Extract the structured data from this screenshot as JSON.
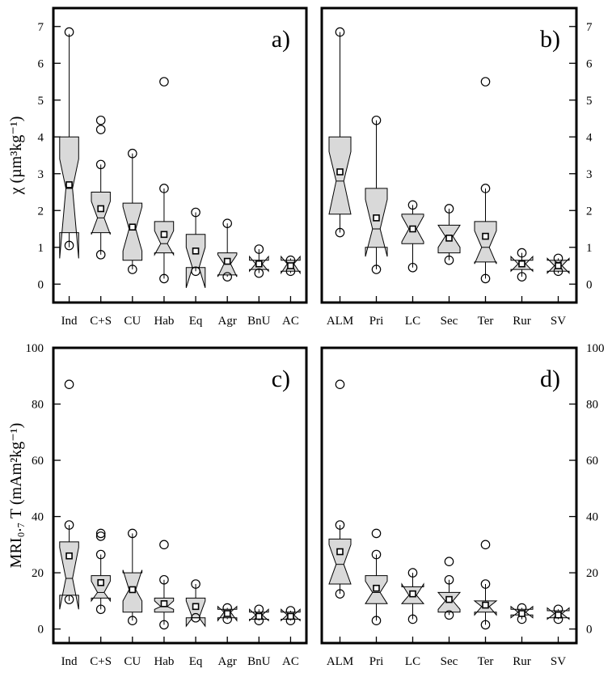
{
  "chart_data": [
    {
      "type": "boxplot",
      "panel_label": "a)",
      "ylabel": "χ (µm³kg⁻¹)",
      "ylim": [
        -0.5,
        7.5
      ],
      "yticks": [
        0,
        1,
        2,
        3,
        4,
        5,
        6,
        7
      ],
      "ytick_labels": [
        "0",
        "1",
        "2",
        "3",
        "4",
        "5",
        "6",
        "7"
      ],
      "y_axis_side": "left",
      "categories": [
        "Ind",
        "C+S",
        "CU",
        "Hab",
        "Eq",
        "Agr",
        "BnU",
        "AC"
      ],
      "boxes": [
        {
          "q1": 1.4,
          "median": 2.6,
          "q3": 4.0,
          "notch_low": 0.7,
          "notch_high": 3.4,
          "whisker_low": 1.0,
          "whisker_high": 6.8,
          "mean": 2.7,
          "outliers": [
            6.85,
            1.05
          ]
        },
        {
          "q1": 1.4,
          "median": 1.8,
          "q3": 2.5,
          "notch_low": 1.35,
          "notch_high": 2.25,
          "whisker_low": 0.8,
          "whisker_high": 3.25,
          "mean": 2.05,
          "outliers": [
            4.45,
            4.2,
            3.25,
            0.8
          ]
        },
        {
          "q1": 0.65,
          "median": 1.5,
          "q3": 2.2,
          "notch_low": 0.9,
          "notch_high": 2.1,
          "whisker_low": 0.4,
          "whisker_high": 3.55,
          "mean": 1.55,
          "outliers": [
            3.55,
            0.4
          ]
        },
        {
          "q1": 0.85,
          "median": 1.1,
          "q3": 1.7,
          "notch_low": 0.8,
          "notch_high": 1.45,
          "whisker_low": 0.15,
          "whisker_high": 2.6,
          "mean": 1.35,
          "outliers": [
            5.5,
            2.6,
            0.15
          ]
        },
        {
          "q1": 0.45,
          "median": 0.45,
          "q3": 1.35,
          "notch_low": -0.1,
          "notch_high": 1.0,
          "whisker_low": 0.35,
          "whisker_high": 1.95,
          "mean": 0.9,
          "outliers": [
            1.95,
            0.35
          ]
        },
        {
          "q1": 0.25,
          "median": 0.55,
          "q3": 0.85,
          "notch_low": 0.2,
          "notch_high": 0.8,
          "whisker_low": 0.2,
          "whisker_high": 1.65,
          "mean": 0.62,
          "outliers": [
            1.65,
            0.2
          ]
        },
        {
          "q1": 0.4,
          "median": 0.55,
          "q3": 0.65,
          "notch_low": 0.35,
          "notch_high": 0.75,
          "whisker_low": 0.3,
          "whisker_high": 0.95,
          "mean": 0.55,
          "outliers": [
            0.95,
            0.3
          ]
        },
        {
          "q1": 0.35,
          "median": 0.55,
          "q3": 0.65,
          "notch_low": 0.3,
          "notch_high": 0.75,
          "whisker_low": 0.3,
          "whisker_high": 0.7,
          "mean": 0.5,
          "outliers": [
            0.65,
            0.35
          ]
        }
      ]
    },
    {
      "type": "boxplot",
      "panel_label": "b)",
      "ylabel": "",
      "ylim": [
        -0.5,
        7.5
      ],
      "yticks": [
        0,
        1,
        2,
        3,
        4,
        5,
        6,
        7
      ],
      "ytick_labels": [
        "0",
        "1",
        "2",
        "3",
        "4",
        "5",
        "6",
        "7"
      ],
      "y_axis_side": "right",
      "categories": [
        "ALM",
        "Pri",
        "LC",
        "Sec",
        "Ter",
        "Rur",
        "SV"
      ],
      "boxes": [
        {
          "q1": 1.9,
          "median": 2.8,
          "q3": 4.0,
          "notch_low": 1.9,
          "notch_high": 3.6,
          "whisker_low": 1.4,
          "whisker_high": 6.85,
          "mean": 3.05,
          "outliers": [
            6.85,
            1.4
          ]
        },
        {
          "q1": 1.0,
          "median": 1.5,
          "q3": 2.6,
          "notch_low": 0.75,
          "notch_high": 2.3,
          "whisker_low": 0.4,
          "whisker_high": 4.45,
          "mean": 1.8,
          "outliers": [
            4.45,
            0.4
          ]
        },
        {
          "q1": 1.1,
          "median": 1.5,
          "q3": 1.9,
          "notch_low": 1.15,
          "notch_high": 1.85,
          "whisker_low": 0.45,
          "whisker_high": 2.15,
          "mean": 1.5,
          "outliers": [
            2.15,
            0.45
          ]
        },
        {
          "q1": 0.85,
          "median": 1.3,
          "q3": 1.6,
          "notch_low": 1.0,
          "notch_high": 1.6,
          "whisker_low": 0.65,
          "whisker_high": 2.05,
          "mean": 1.25,
          "outliers": [
            2.05,
            0.65
          ]
        },
        {
          "q1": 0.6,
          "median": 1.0,
          "q3": 1.7,
          "notch_low": 0.55,
          "notch_high": 1.45,
          "whisker_low": 0.15,
          "whisker_high": 2.6,
          "mean": 1.3,
          "outliers": [
            5.5,
            2.6,
            0.15
          ]
        },
        {
          "q1": 0.4,
          "median": 0.55,
          "q3": 0.65,
          "notch_low": 0.35,
          "notch_high": 0.75,
          "whisker_low": 0.2,
          "whisker_high": 0.85,
          "mean": 0.55,
          "outliers": [
            0.85,
            0.2
          ]
        },
        {
          "q1": 0.35,
          "median": 0.5,
          "q3": 0.65,
          "notch_low": 0.3,
          "notch_high": 0.7,
          "whisker_low": 0.3,
          "whisker_high": 0.7,
          "mean": 0.5,
          "outliers": [
            0.7,
            0.35
          ]
        }
      ]
    },
    {
      "type": "boxplot",
      "panel_label": "c)",
      "ylabel": "MRI₀.₇ T (mAm²kg⁻¹)",
      "ylim": [
        -5,
        100
      ],
      "yticks": [
        0,
        20,
        40,
        60,
        80,
        100
      ],
      "ytick_labels": [
        "0",
        "20",
        "40",
        "60",
        "80",
        "100"
      ],
      "y_axis_side": "left",
      "categories": [
        "Ind",
        "C+S",
        "CU",
        "Hab",
        "Eq",
        "Agr",
        "BnU",
        "AC"
      ],
      "boxes": [
        {
          "q1": 12,
          "median": 18,
          "q3": 31,
          "notch_low": 7,
          "notch_high": 29,
          "whisker_low": 10,
          "whisker_high": 37,
          "mean": 26,
          "outliers": [
            87,
            37,
            10.5
          ]
        },
        {
          "q1": 11,
          "median": 13,
          "q3": 19,
          "notch_low": 10,
          "notch_high": 17,
          "whisker_low": 7,
          "whisker_high": 26.5,
          "mean": 16.5,
          "outliers": [
            34,
            33,
            26.5,
            7
          ]
        },
        {
          "q1": 6,
          "median": 14,
          "q3": 20,
          "notch_low": 10,
          "notch_high": 21,
          "whisker_low": 3,
          "whisker_high": 34,
          "mean": 14,
          "outliers": [
            34,
            3
          ]
        },
        {
          "q1": 6,
          "median": 8,
          "q3": 11,
          "notch_low": 7,
          "notch_high": 10,
          "whisker_low": 1.5,
          "whisker_high": 17.5,
          "mean": 9,
          "outliers": [
            30,
            17.5,
            1.5
          ]
        },
        {
          "q1": 4,
          "median": 4,
          "q3": 11,
          "notch_low": 1,
          "notch_high": 10,
          "whisker_low": 4,
          "whisker_high": 16,
          "mean": 8,
          "outliers": [
            16,
            4
          ]
        },
        {
          "q1": 4,
          "median": 6,
          "q3": 7,
          "notch_low": 3,
          "notch_high": 8,
          "whisker_low": 3.5,
          "whisker_high": 7.5,
          "mean": 5.5,
          "outliers": [
            7.5,
            3.5
          ]
        },
        {
          "q1": 3.5,
          "median": 5,
          "q3": 6,
          "notch_low": 3,
          "notch_high": 7,
          "whisker_low": 3,
          "whisker_high": 7,
          "mean": 4.5,
          "outliers": [
            7,
            3
          ]
        },
        {
          "q1": 3.5,
          "median": 5,
          "q3": 6,
          "notch_low": 3,
          "notch_high": 7,
          "whisker_low": 3,
          "whisker_high": 6.5,
          "mean": 4.5,
          "outliers": [
            6.5,
            3
          ]
        }
      ]
    },
    {
      "type": "boxplot",
      "panel_label": "d)",
      "ylabel": "",
      "ylim": [
        -5,
        100
      ],
      "yticks": [
        0,
        20,
        40,
        60,
        80,
        100
      ],
      "ytick_labels": [
        "0",
        "20",
        "40",
        "60",
        "80",
        "100"
      ],
      "y_axis_side": "right",
      "categories": [
        "ALM",
        "Pri",
        "LC",
        "Sec",
        "Ter",
        "Rur",
        "SV"
      ],
      "boxes": [
        {
          "q1": 16,
          "median": 23,
          "q3": 32,
          "notch_low": 16,
          "notch_high": 30,
          "whisker_low": 12.5,
          "whisker_high": 37,
          "mean": 27.5,
          "outliers": [
            87,
            37,
            12.5
          ]
        },
        {
          "q1": 9,
          "median": 13,
          "q3": 19,
          "notch_low": 9,
          "notch_high": 17,
          "whisker_low": 3,
          "whisker_high": 26.5,
          "mean": 14.5,
          "outliers": [
            34,
            26.5,
            3
          ]
        },
        {
          "q1": 9,
          "median": 12,
          "q3": 15,
          "notch_low": 9,
          "notch_high": 16,
          "whisker_low": 3.5,
          "whisker_high": 20,
          "mean": 12.5,
          "outliers": [
            20,
            3.5
          ]
        },
        {
          "q1": 6,
          "median": 10,
          "q3": 13,
          "notch_low": 7,
          "notch_high": 13,
          "whisker_low": 5,
          "whisker_high": 17.5,
          "mean": 10.5,
          "outliers": [
            24,
            17.5,
            5
          ]
        },
        {
          "q1": 6,
          "median": 8,
          "q3": 10,
          "notch_low": 5,
          "notch_high": 10,
          "whisker_low": 1.5,
          "whisker_high": 16,
          "mean": 8.5,
          "outliers": [
            30,
            16,
            1.5
          ]
        },
        {
          "q1": 5,
          "median": 6,
          "q3": 7,
          "notch_low": 4,
          "notch_high": 8,
          "whisker_low": 3.5,
          "whisker_high": 7.5,
          "mean": 5.5,
          "outliers": [
            7.5,
            3.5
          ]
        },
        {
          "q1": 4,
          "median": 5.5,
          "q3": 6.5,
          "notch_low": 3.5,
          "notch_high": 7.5,
          "whisker_low": 3.5,
          "whisker_high": 7,
          "mean": 5,
          "outliers": [
            7,
            3.5
          ]
        }
      ]
    }
  ]
}
